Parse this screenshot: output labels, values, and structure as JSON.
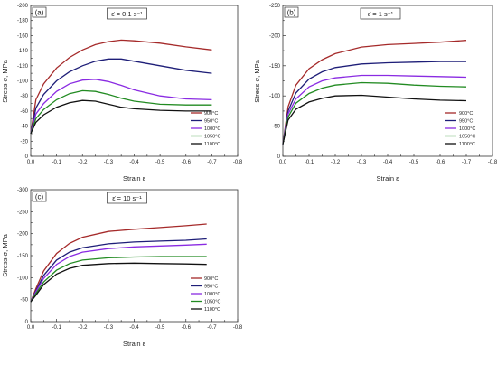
{
  "chart_data": [
    {
      "panel_label": "(a)",
      "rate_label": "ε̇ = 0.1 s⁻¹",
      "type": "line",
      "xlabel": "Strain ε",
      "ylabel": "Stress σ, MPa",
      "xlim": [
        0,
        -0.8
      ],
      "ylim": [
        0,
        -200
      ],
      "xticks": [
        "0.0",
        "-0.1",
        "-0.2",
        "-0.3",
        "-0.4",
        "-0.5",
        "-0.6",
        "-0.7",
        "-0.8"
      ],
      "yticks": [
        "0",
        "-20",
        "-40",
        "-60",
        "-80",
        "-100",
        "-120",
        "-140",
        "-160",
        "-180",
        "-200"
      ],
      "legend_position": "bottom-right",
      "series": [
        {
          "name": "900°C",
          "color": "#a52a2a",
          "x": [
            0,
            -0.02,
            -0.05,
            -0.1,
            -0.15,
            -0.2,
            -0.25,
            -0.3,
            -0.35,
            -0.4,
            -0.5,
            -0.6,
            -0.7
          ],
          "y": [
            -30,
            -75,
            -96,
            -117,
            -131,
            -141,
            -148,
            -152,
            -154,
            -153,
            -150,
            -145,
            -141
          ]
        },
        {
          "name": "950°C",
          "color": "#1e1e78",
          "x": [
            0,
            -0.02,
            -0.05,
            -0.1,
            -0.15,
            -0.2,
            -0.25,
            -0.3,
            -0.35,
            -0.4,
            -0.5,
            -0.6,
            -0.7
          ],
          "y": [
            -30,
            -64,
            -82,
            -100,
            -112,
            -120,
            -126,
            -129,
            -129,
            -126,
            -120,
            -114,
            -110
          ]
        },
        {
          "name": "1000°C",
          "color": "#8a2be2",
          "x": [
            0,
            -0.02,
            -0.05,
            -0.1,
            -0.15,
            -0.2,
            -0.25,
            -0.3,
            -0.35,
            -0.4,
            -0.5,
            -0.6,
            -0.7
          ],
          "y": [
            -30,
            -56,
            -70,
            -86,
            -96,
            -101,
            -102,
            -99,
            -94,
            -88,
            -80,
            -76,
            -75
          ]
        },
        {
          "name": "1050°C",
          "color": "#228b22",
          "x": [
            0,
            -0.02,
            -0.05,
            -0.1,
            -0.15,
            -0.2,
            -0.25,
            -0.3,
            -0.35,
            -0.4,
            -0.5,
            -0.6,
            -0.7
          ],
          "y": [
            -30,
            -50,
            -62,
            -75,
            -83,
            -87,
            -86,
            -82,
            -77,
            -73,
            -69,
            -68,
            -68
          ]
        },
        {
          "name": "1100°C",
          "color": "#111111",
          "x": [
            0,
            -0.02,
            -0.05,
            -0.1,
            -0.15,
            -0.2,
            -0.25,
            -0.3,
            -0.35,
            -0.4,
            -0.5,
            -0.6,
            -0.7
          ],
          "y": [
            -30,
            -45,
            -55,
            -65,
            -71,
            -74,
            -73,
            -69,
            -65,
            -63,
            -61,
            -60,
            -60
          ]
        }
      ]
    },
    {
      "panel_label": "(b)",
      "rate_label": "ε̇ = 1 s⁻¹",
      "type": "line",
      "xlabel": "Strain ε",
      "ylabel": "Stress σ, MPa",
      "xlim": [
        0,
        -0.8
      ],
      "ylim": [
        0,
        -250
      ],
      "xticks": [
        "0.0",
        "-0.1",
        "-0.2",
        "-0.3",
        "-0.4",
        "-0.5",
        "-0.6",
        "-0.7",
        "-0.8"
      ],
      "yticks": [
        "0",
        "-50",
        "-100",
        "-150",
        "-200",
        "-250"
      ],
      "legend_position": "bottom-right",
      "series": [
        {
          "name": "900°C",
          "color": "#a52a2a",
          "x": [
            0,
            -0.02,
            -0.05,
            -0.1,
            -0.15,
            -0.2,
            -0.3,
            -0.4,
            -0.5,
            -0.6,
            -0.7
          ],
          "y": [
            -20,
            -82,
            -118,
            -145,
            -160,
            -170,
            -181,
            -185,
            -187,
            -189,
            -192
          ]
        },
        {
          "name": "950°C",
          "color": "#1e1e78",
          "x": [
            0,
            -0.02,
            -0.05,
            -0.1,
            -0.15,
            -0.2,
            -0.3,
            -0.4,
            -0.5,
            -0.6,
            -0.7
          ],
          "y": [
            -20,
            -75,
            -105,
            -128,
            -140,
            -147,
            -153,
            -155,
            -156,
            -157,
            -157
          ]
        },
        {
          "name": "1000°C",
          "color": "#8a2be2",
          "x": [
            0,
            -0.02,
            -0.05,
            -0.1,
            -0.15,
            -0.2,
            -0.3,
            -0.4,
            -0.5,
            -0.6,
            -0.7
          ],
          "y": [
            -20,
            -70,
            -95,
            -115,
            -125,
            -130,
            -134,
            -134,
            -133,
            -132,
            -131
          ]
        },
        {
          "name": "1050°C",
          "color": "#228b22",
          "x": [
            0,
            -0.02,
            -0.05,
            -0.1,
            -0.15,
            -0.2,
            -0.3,
            -0.4,
            -0.5,
            -0.6,
            -0.7
          ],
          "y": [
            -20,
            -65,
            -88,
            -104,
            -113,
            -118,
            -122,
            -121,
            -118,
            -116,
            -115
          ]
        },
        {
          "name": "1100°C",
          "color": "#111111",
          "x": [
            0,
            -0.02,
            -0.05,
            -0.1,
            -0.15,
            -0.2,
            -0.3,
            -0.4,
            -0.5,
            -0.6,
            -0.7
          ],
          "y": [
            -20,
            -60,
            -78,
            -90,
            -96,
            -100,
            -101,
            -98,
            -95,
            -93,
            -92
          ]
        }
      ]
    },
    {
      "panel_label": "(c)",
      "rate_label": "ε̇ = 10 s⁻¹",
      "type": "line",
      "xlabel": "Strain ε",
      "ylabel": "Stress σ, MPa",
      "xlim": [
        0,
        -0.8
      ],
      "ylim": [
        0,
        -300
      ],
      "xticks": [
        "0.0",
        "-0.1",
        "-0.2",
        "-0.3",
        "-0.4",
        "-0.5",
        "-0.6",
        "-0.7",
        "-0.8"
      ],
      "yticks": [
        "0",
        "-50",
        "-100",
        "-150",
        "-200",
        "-250",
        "-300"
      ],
      "legend_position": "bottom-right",
      "series": [
        {
          "name": "900°C",
          "color": "#a52a2a",
          "x": [
            0,
            -0.02,
            -0.05,
            -0.1,
            -0.15,
            -0.2,
            -0.3,
            -0.4,
            -0.5,
            -0.6,
            -0.68
          ],
          "y": [
            -45,
            -75,
            -115,
            -155,
            -178,
            -192,
            -205,
            -210,
            -214,
            -218,
            -222
          ]
        },
        {
          "name": "950°C",
          "color": "#1e1e78",
          "x": [
            0,
            -0.02,
            -0.05,
            -0.1,
            -0.15,
            -0.2,
            -0.3,
            -0.4,
            -0.5,
            -0.6,
            -0.68
          ],
          "y": [
            -45,
            -70,
            -105,
            -140,
            -158,
            -168,
            -177,
            -181,
            -183,
            -185,
            -188
          ]
        },
        {
          "name": "1000°C",
          "color": "#8a2be2",
          "x": [
            0,
            -0.02,
            -0.05,
            -0.1,
            -0.15,
            -0.2,
            -0.3,
            -0.4,
            -0.5,
            -0.6,
            -0.68
          ],
          "y": [
            -45,
            -68,
            -98,
            -130,
            -148,
            -158,
            -166,
            -170,
            -172,
            -174,
            -176
          ]
        },
        {
          "name": "1050°C",
          "color": "#228b22",
          "x": [
            0,
            -0.02,
            -0.05,
            -0.1,
            -0.15,
            -0.2,
            -0.3,
            -0.4,
            -0.5,
            -0.6,
            -0.68
          ],
          "y": [
            -45,
            -64,
            -90,
            -117,
            -132,
            -140,
            -145,
            -147,
            -148,
            -148,
            -148
          ]
        },
        {
          "name": "1100°C",
          "color": "#111111",
          "x": [
            0,
            -0.02,
            -0.05,
            -0.1,
            -0.15,
            -0.2,
            -0.3,
            -0.4,
            -0.5,
            -0.6,
            -0.68
          ],
          "y": [
            -45,
            -60,
            -84,
            -108,
            -121,
            -128,
            -132,
            -133,
            -132,
            -131,
            -130
          ]
        }
      ]
    }
  ]
}
